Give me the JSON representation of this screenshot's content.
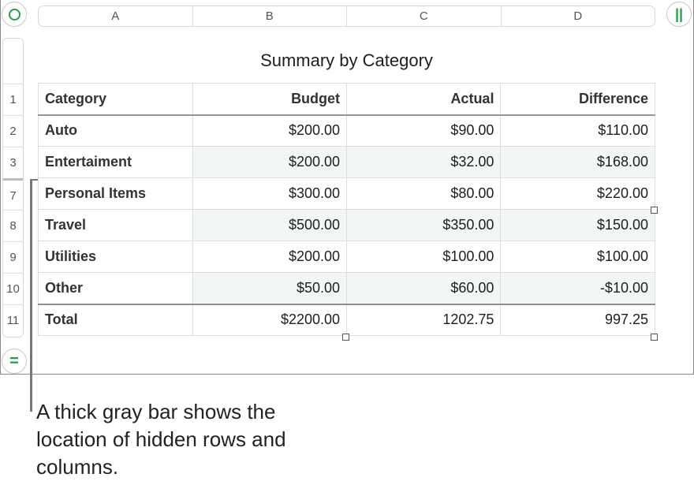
{
  "columns": [
    "A",
    "B",
    "C",
    "D"
  ],
  "row_numbers": [
    "1",
    "2",
    "3",
    "7",
    "8",
    "9",
    "10",
    "11"
  ],
  "table_title": "Summary by Category",
  "header": [
    "Category",
    "Budget",
    "Actual",
    "Difference"
  ],
  "rows": [
    [
      "Auto",
      "$200.00",
      "$90.00",
      "$110.00"
    ],
    [
      "Entertaiment",
      "$200.00",
      "$32.00",
      "$168.00"
    ],
    [
      "Personal Items",
      "$300.00",
      "$80.00",
      "$220.00"
    ],
    [
      "Travel",
      "$500.00",
      "$350.00",
      "$150.00"
    ],
    [
      "Utilities",
      "$200.00",
      "$100.00",
      "$100.00"
    ],
    [
      "Other",
      "$50.00",
      "$60.00",
      "-$10.00"
    ]
  ],
  "total": [
    "Total",
    "$2200.00",
    "1202.75",
    "997.25"
  ],
  "callout": "A thick gray bar shows the location of hidden rows and columns.",
  "accent_color": "#1aa34a"
}
